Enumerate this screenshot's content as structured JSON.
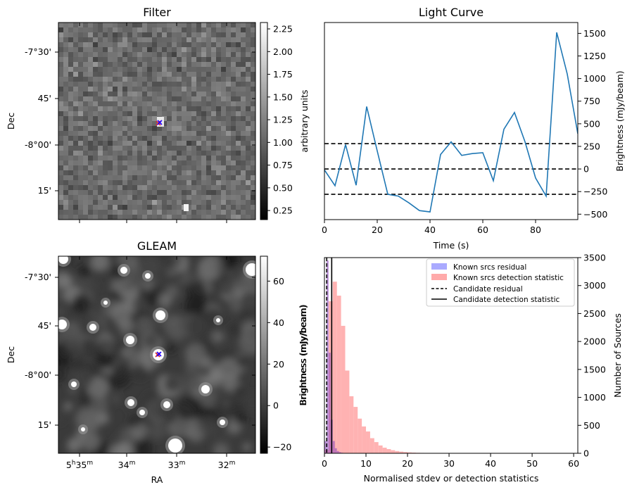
{
  "filter_panel": {
    "title": "Filter",
    "ylabel": "Dec",
    "dec_ticks": [
      "-7°30'",
      "45'",
      "-8°00'",
      "15'"
    ],
    "colorbar_label": "arbitrary units",
    "colorbar_ticks": [
      "0.25",
      "0.50",
      "0.75",
      "1.00",
      "1.25",
      "1.50",
      "1.75",
      "2.00",
      "2.25"
    ],
    "colorbar_range": [
      0.15,
      2.32
    ],
    "marker_colors": [
      "#d62728",
      "#1f00ff"
    ]
  },
  "gleam_panel": {
    "title": "GLEAM",
    "ylabel": "Dec",
    "xlabel": "RA",
    "dec_ticks": [
      "-7°30'",
      "45'",
      "-8°00'",
      "15'"
    ],
    "ra_ticks": [
      {
        "main": "5",
        "h": "h",
        "m_val": "35",
        "m": "m"
      },
      {
        "main": "34",
        "h": "",
        "m_val": "",
        "m": "m"
      },
      {
        "main": "33",
        "h": "",
        "m_val": "",
        "m": "m"
      },
      {
        "main": "32",
        "h": "",
        "m_val": "",
        "m": "m"
      }
    ],
    "colorbar_label": "Brightness (mJy/beam)",
    "colorbar_ticks": [
      "−20",
      "0",
      "20",
      "40",
      "60"
    ],
    "colorbar_range": [
      -23,
      72
    ]
  },
  "chart_data": [
    {
      "type": "line",
      "title": "Light Curve",
      "xlabel": "Time (s)",
      "ylabel": "Brightness (mJy/beam)",
      "xlim": [
        0,
        96
      ],
      "ylim": [
        -560,
        1620
      ],
      "xticks": [
        0,
        20,
        40,
        60,
        80
      ],
      "yticks": [
        -500,
        -250,
        0,
        250,
        500,
        750,
        1000,
        1250,
        1500
      ],
      "y_axis_side": "right",
      "series": [
        {
          "x": [
            0,
            4,
            8,
            12,
            16,
            20,
            24,
            28,
            32,
            36,
            40,
            44,
            48,
            52,
            56,
            60,
            64,
            68,
            72,
            76,
            80,
            84,
            88,
            92,
            96
          ],
          "y": [
            -10,
            -185,
            270,
            -180,
            690,
            200,
            -280,
            -300,
            -375,
            -460,
            -475,
            160,
            300,
            150,
            170,
            180,
            -130,
            440,
            625,
            300,
            -100,
            -300,
            1510,
            1050,
            390
          ],
          "color": "#1f77b4"
        }
      ],
      "hlines": [
        280,
        0,
        -280
      ]
    },
    {
      "type": "bar",
      "xlabel": "Normalised stdev or detection statistics",
      "ylabel": "Number of Sources",
      "left_label": "Brightness (mJy/beam)",
      "xlim": [
        0,
        61
      ],
      "ylim": [
        0,
        3500
      ],
      "xticks": [
        0,
        10,
        20,
        30,
        40,
        50,
        60
      ],
      "yticks": [
        0,
        500,
        1000,
        1500,
        2000,
        2500,
        3000,
        3500
      ],
      "legend_position": "top-right",
      "series": [
        {
          "name": "Known srcs residual",
          "color": "#aaaaff",
          "bin_width": 0.5,
          "bins_start": 0,
          "values": [
            220,
            3450,
            1800,
            600,
            220,
            90,
            40,
            20,
            10,
            5
          ]
        },
        {
          "name": "Known srcs detection statistic",
          "color": "#ffaaaa",
          "bin_width": 1,
          "bins_start": 0,
          "values": [
            60,
            2720,
            3070,
            2820,
            2280,
            1480,
            1020,
            830,
            620,
            480,
            390,
            270,
            200,
            140,
            100,
            75,
            55,
            40,
            30,
            22,
            16,
            12,
            9,
            7,
            5,
            4,
            3,
            3,
            2,
            2,
            2,
            1,
            1,
            1,
            1,
            1,
            0,
            0,
            0,
            0,
            0,
            0,
            0,
            0,
            0,
            0,
            0,
            0,
            0,
            0,
            0,
            0,
            0,
            0,
            0,
            0,
            0,
            2,
            0,
            0
          ]
        }
      ],
      "vlines": [
        {
          "name": "Candidate residual",
          "x": 0.55,
          "style": "dashed"
        },
        {
          "name": "Candidate detection statistic",
          "x": 1.75,
          "style": "solid"
        }
      ]
    }
  ]
}
